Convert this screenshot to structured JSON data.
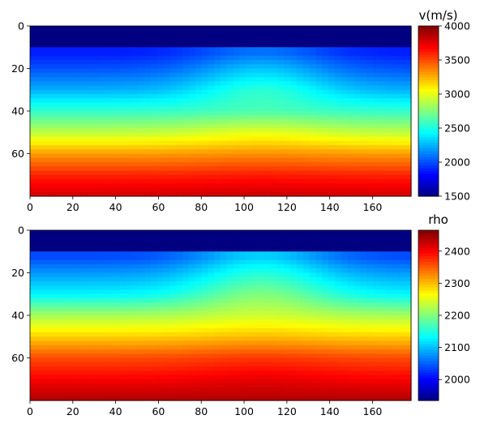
{
  "chart_data": [
    {
      "type": "heatmap",
      "title": "",
      "xlabel": "",
      "ylabel": "",
      "xlim": [
        0,
        178
      ],
      "ylim": [
        80,
        0
      ],
      "x_ticks": [
        "0",
        "20",
        "40",
        "60",
        "80",
        "100",
        "120",
        "140",
        "160"
      ],
      "y_ticks": [
        "0",
        "20",
        "40",
        "60"
      ],
      "colormap": "jet",
      "colorbar": {
        "label": "v(m/s)",
        "range": [
          1500,
          4000
        ],
        "ticks": [
          "1500",
          "2000",
          "2500",
          "3000",
          "3500",
          "4000"
        ]
      },
      "field": {
        "quantity": "velocity",
        "water_layer_depth": 11,
        "water_value": 1500,
        "profile_depth": [
          13,
          20,
          30,
          40,
          50,
          60,
          70,
          80
        ],
        "profile_value_at_x0": [
          1880,
          2010,
          2240,
          2560,
          2900,
          3300,
          3600,
          3800
        ],
        "profile_value_at_x110": [
          2090,
          2290,
          2540,
          2620,
          3000,
          3330,
          3620,
          3820
        ]
      }
    },
    {
      "type": "heatmap",
      "title": "",
      "xlabel": "",
      "ylabel": "",
      "xlim": [
        0,
        178
      ],
      "ylim": [
        80,
        0
      ],
      "x_ticks": [
        "0",
        "20",
        "40",
        "60",
        "80",
        "100",
        "120",
        "140",
        "160"
      ],
      "y_ticks": [
        "0",
        "20",
        "40",
        "60"
      ],
      "colormap": "jet",
      "colorbar": {
        "label": "rho",
        "range": [
          1935,
          2465
        ],
        "ticks": [
          "2000",
          "2100",
          "2200",
          "2300",
          "2400"
        ]
      },
      "field": {
        "quantity": "density",
        "water_layer_depth": 11,
        "water_value": 1935,
        "profile_depth": [
          13,
          20,
          30,
          40,
          50,
          60,
          70,
          80
        ],
        "profile_value_at_x0": [
          2040,
          2080,
          2130,
          2220,
          2290,
          2360,
          2400,
          2440
        ],
        "profile_value_at_x110": [
          2110,
          2150,
          2200,
          2240,
          2300,
          2370,
          2410,
          2440
        ]
      }
    }
  ]
}
